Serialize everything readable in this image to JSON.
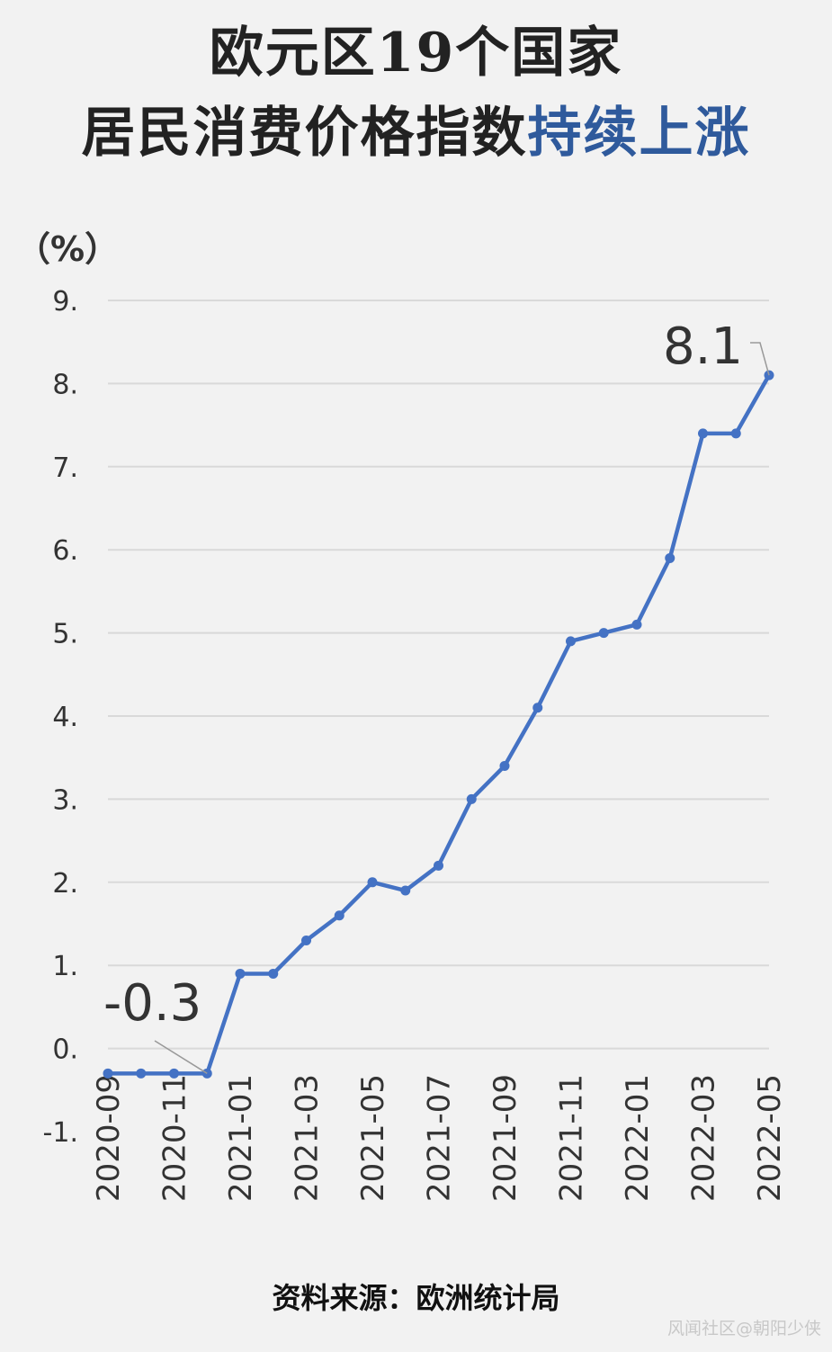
{
  "title": {
    "line1": "欧元区19个国家",
    "line2_main": "居民消费价格指数",
    "line2_highlight": "持续上涨"
  },
  "footer": {
    "source": "资料来源：欧洲统计局",
    "watermark": "风闻社区@朝阳少侠"
  },
  "colors": {
    "line": "#4472c4",
    "highlight": "#2f5a9c",
    "grid": "#d9d9d9",
    "text": "#333333"
  },
  "chart_data": {
    "type": "line",
    "unit_label": "（%）",
    "y_tick_labels": [
      "9.",
      "8.",
      "7.",
      "6.",
      "5.",
      "4.",
      "3.",
      "2.",
      "1.",
      "0.",
      "-1."
    ],
    "y_tick_values": [
      9,
      8,
      7,
      6,
      5,
      4,
      3,
      2,
      1,
      0,
      -1
    ],
    "ylim": [
      -1,
      9
    ],
    "grid": true,
    "x": [
      "2020-09",
      "2020-10",
      "2020-11",
      "2020-12",
      "2021-01",
      "2021-02",
      "2021-03",
      "2021-04",
      "2021-05",
      "2021-06",
      "2021-07",
      "2021-08",
      "2021-09",
      "2021-10",
      "2021-11",
      "2021-12",
      "2022-01",
      "2022-02",
      "2022-03",
      "2022-04",
      "2022-05"
    ],
    "x_tick_labels": [
      "2020-09",
      "",
      "2020-11",
      "",
      "2021-01",
      "",
      "2021-03",
      "",
      "2021-05",
      "",
      "2021-07",
      "",
      "2021-09",
      "",
      "2021-11",
      "",
      "2022-01",
      "",
      "2022-03",
      "",
      "2022-05"
    ],
    "series": [
      {
        "values": [
          -0.3,
          -0.3,
          -0.3,
          -0.3,
          0.9,
          0.9,
          1.3,
          1.6,
          2.0,
          1.9,
          2.2,
          3.0,
          3.4,
          4.1,
          4.9,
          5.0,
          5.1,
          5.9,
          7.4,
          7.4,
          8.1
        ]
      }
    ],
    "annotations": [
      {
        "text": "-0.3",
        "index": 3
      },
      {
        "text": "8.1",
        "index": 20
      }
    ]
  }
}
